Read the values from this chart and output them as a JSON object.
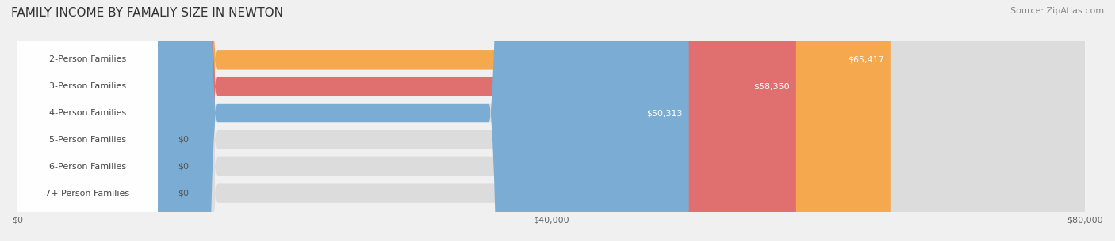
{
  "title": "FAMILY INCOME BY FAMALIY SIZE IN NEWTON",
  "source": "Source: ZipAtlas.com",
  "categories": [
    "2-Person Families",
    "3-Person Families",
    "4-Person Families",
    "5-Person Families",
    "6-Person Families",
    "7+ Person Families"
  ],
  "values": [
    65417,
    58350,
    50313,
    0,
    0,
    0
  ],
  "bar_colors": [
    "#F5A84E",
    "#E07070",
    "#7BADD4",
    "#C9A8D4",
    "#7EC8C0",
    "#B0B8D8"
  ],
  "label_colors": [
    "#FFFFFF",
    "#FFFFFF",
    "#FFFFFF",
    "#555555",
    "#555555",
    "#555555"
  ],
  "bg_color": "#F0F0F0",
  "bar_bg_color": "#E8E8E8",
  "xlim": [
    0,
    80000
  ],
  "xticks": [
    0,
    40000,
    80000
  ],
  "xtick_labels": [
    "$0",
    "$40,000",
    "$80,000"
  ],
  "title_fontsize": 11,
  "source_fontsize": 8,
  "bar_label_fontsize": 8,
  "category_fontsize": 8,
  "figsize": [
    14.06,
    3.05
  ],
  "dpi": 100
}
